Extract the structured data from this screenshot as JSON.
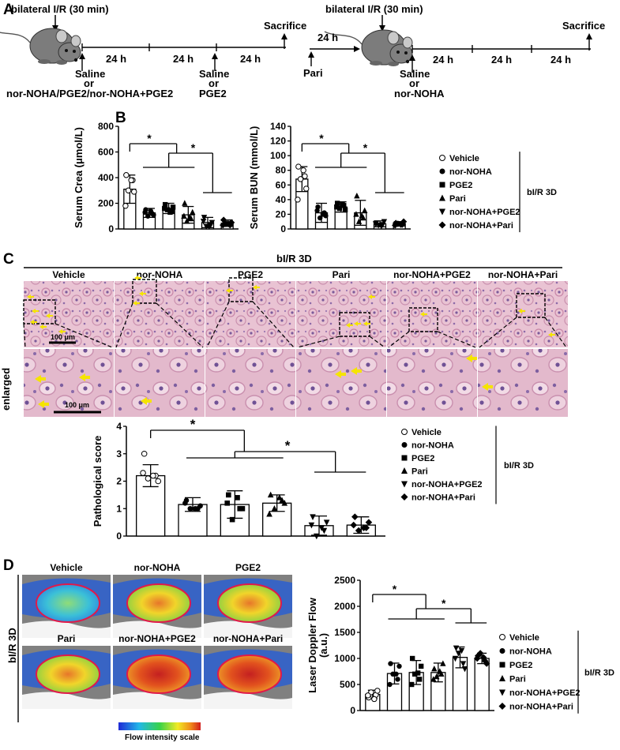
{
  "panels": {
    "A": {
      "label": "A",
      "left": {
        "top_label": "bilateral I/R (30 min)",
        "day_label": "24 h",
        "saline_or": "or",
        "treatment_text": "nor-NOHA/PGE2/nor-NOHA+PGE2",
        "saline1": "Saline",
        "saline2": "Saline",
        "pge2": "PGE2",
        "end_label": "Sacrifice"
      },
      "right": {
        "top_label": "bilateral I/R (30 min)",
        "pre_label": "24 h",
        "pari": "Pari",
        "day_label": "24 h",
        "saline": "Saline",
        "or": "or",
        "treatment": "nor-NOHA",
        "end_label": "Sacrifice"
      }
    },
    "B": {
      "label": "B"
    },
    "C": {
      "label": "C",
      "header": "bI/R 3D",
      "columns": [
        "Vehicle",
        "nor-NOHA",
        "PGE2",
        "Pari",
        "nor-NOHA+PGE2",
        "nor-NOHA+Pari"
      ],
      "enlarged_label": "enlarged",
      "scalebar_top": "100 μm",
      "scalebar_bottom": "100 μm"
    },
    "D": {
      "label": "D",
      "side_label": "bI/R 3D",
      "images": [
        "Vehicle",
        "nor-NOHA",
        "PGE2",
        "Pari",
        "nor-NOHA+PGE2",
        "nor-NOHA+Pari"
      ],
      "scale_label": "Flow intensity scale"
    }
  },
  "legend": {
    "items": [
      "Vehicle",
      "nor-NOHA",
      "PGE2",
      "Pari",
      "nor-NOHA+PGE2",
      "nor-NOHA+Pari"
    ],
    "group_label": "bI/R 3D"
  },
  "colors": {
    "laser_ellipse": "#e0194a",
    "arrow_yellow": "#f5e400",
    "he_tissue": "#e7bfd0"
  },
  "chart_data": [
    {
      "id": "crea",
      "type": "bar",
      "ylabel": "Serum Crea (μmol/L)",
      "ylim": [
        0,
        800
      ],
      "yticks": [
        0,
        200,
        400,
        600,
        800
      ],
      "categories": [
        "Vehicle",
        "nor-NOHA",
        "PGE2",
        "Pari",
        "nor-NOHA+PGE2",
        "nor-NOHA+Pari"
      ],
      "values": [
        310,
        125,
        160,
        110,
        50,
        45
      ],
      "errors": [
        110,
        35,
        40,
        65,
        40,
        25
      ],
      "points": [
        [
          420,
          380,
          300,
          290,
          180,
          380
        ],
        [
          150,
          120,
          100,
          110,
          130,
          140
        ],
        [
          190,
          140,
          150,
          170,
          160,
          130
        ],
        [
          200,
          80,
          60,
          130,
          100,
          90
        ],
        [
          90,
          30,
          20,
          50,
          60,
          20
        ],
        [
          70,
          30,
          40,
          50,
          30,
          40
        ]
      ],
      "significance": "*"
    },
    {
      "id": "bun",
      "type": "bar",
      "ylabel": "Serum BUN (mmol/L)",
      "ylim": [
        0,
        140
      ],
      "yticks": [
        0,
        20,
        40,
        60,
        80,
        100,
        120,
        140
      ],
      "categories": [
        "Vehicle",
        "nor-NOHA",
        "PGE2",
        "Pari",
        "nor-NOHA+PGE2",
        "nor-NOHA+Pari"
      ],
      "values": [
        68,
        22,
        30,
        22,
        7,
        7
      ],
      "errors": [
        17,
        13,
        7,
        17,
        4,
        3
      ],
      "points": [
        [
          85,
          72,
          68,
          55,
          40,
          80
        ],
        [
          30,
          22,
          15,
          18,
          25,
          20
        ],
        [
          35,
          32,
          28,
          26,
          30,
          34
        ],
        [
          45,
          15,
          10,
          25,
          20,
          18
        ],
        [
          8,
          6,
          5,
          10,
          7,
          4
        ],
        [
          8,
          6,
          7,
          10,
          5,
          6
        ]
      ],
      "significance": "*"
    },
    {
      "id": "path",
      "type": "bar",
      "ylabel": "Pathological score",
      "ylim": [
        0,
        4
      ],
      "yticks": [
        0,
        1,
        2,
        3,
        4
      ],
      "categories": [
        "Vehicle",
        "nor-NOHA",
        "PGE2",
        "Pari",
        "nor-NOHA+PGE2",
        "nor-NOHA+Pari"
      ],
      "values": [
        2.2,
        1.15,
        1.15,
        1.2,
        0.38,
        0.4
      ],
      "errors": [
        0.4,
        0.25,
        0.5,
        0.3,
        0.35,
        0.3
      ],
      "points": [
        [
          3.0,
          2.2,
          2.1,
          2.0,
          2.3,
          2.2
        ],
        [
          1.3,
          1.0,
          1.0,
          1.1,
          1.2,
          1.0
        ],
        [
          1.5,
          1.0,
          0.6,
          1.0,
          1.2,
          1.4
        ],
        [
          1.5,
          1.3,
          1.0,
          1.2,
          0.8,
          1.4
        ],
        [
          0.7,
          0.2,
          0.0,
          0.5,
          0.4,
          0.3
        ],
        [
          0.7,
          0.3,
          0.2,
          0.5,
          0.4,
          0.3
        ]
      ],
      "significance": "*"
    },
    {
      "id": "ldf",
      "type": "bar",
      "ylabel": "Laser Doppler Flow",
      "ylabel2": "(a.u.)",
      "ylim": [
        0,
        2500
      ],
      "yticks": [
        0,
        500,
        1000,
        1500,
        2000,
        2500
      ],
      "categories": [
        "Vehicle",
        "nor-NOHA",
        "PGE2",
        "Pari",
        "nor-NOHA+PGE2",
        "nor-NOHA+Pari"
      ],
      "values": [
        310,
        710,
        730,
        730,
        1020,
        1000
      ],
      "errors": [
        80,
        200,
        230,
        180,
        200,
        100
      ],
      "points": [
        [
          250,
          300,
          350,
          380,
          290,
          220
        ],
        [
          900,
          600,
          700,
          850,
          500,
          700
        ],
        [
          1000,
          600,
          700,
          850,
          500,
          720
        ],
        [
          800,
          700,
          650,
          900,
          600,
          750
        ],
        [
          1200,
          900,
          1100,
          800,
          1000,
          1150
        ],
        [
          1050,
          950,
          1100,
          900,
          1000,
          1020
        ]
      ],
      "significance": "*"
    }
  ]
}
